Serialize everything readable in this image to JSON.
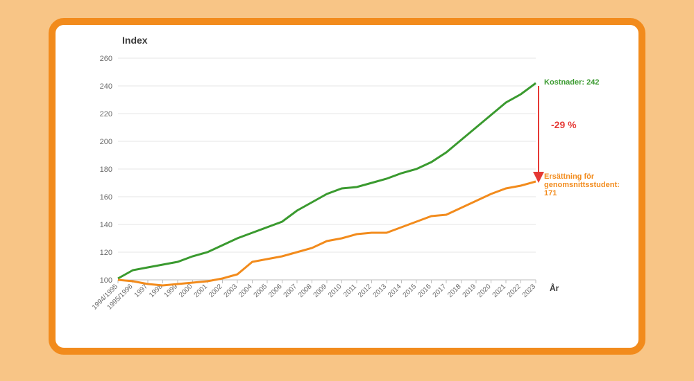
{
  "chart": {
    "type": "line",
    "y_axis_title": "Index",
    "x_axis_title": "År",
    "background_color": "#ffffff",
    "outer_background": "#f8c586",
    "card_border_color": "#f28b1c",
    "card_border_width": 10,
    "card_border_radius": 22,
    "grid_color": "#e5e5e5",
    "axis_color": "#bdbdbd",
    "tick_label_color": "#6b6b6b",
    "title_color": "#3a3a3a",
    "ylim": [
      90,
      260
    ],
    "yticks": [
      100,
      120,
      140,
      160,
      180,
      200,
      220,
      240,
      260
    ],
    "x_categories": [
      "1994/1995",
      "1995/1996",
      "1997",
      "1998",
      "1999",
      "2000",
      "2001",
      "2002",
      "2003",
      "2004",
      "2005",
      "2006",
      "2007",
      "2008",
      "2009",
      "2010",
      "2011",
      "2012",
      "2013",
      "2014",
      "2015",
      "2016",
      "2017",
      "2018",
      "2019",
      "2020",
      "2021",
      "2022",
      "2023"
    ],
    "line_width": 3,
    "x_label_fontsize": 10,
    "y_label_fontsize": 11,
    "series": [
      {
        "name": "Kostnader",
        "color": "#3a9a2f",
        "values": [
          101,
          107,
          109,
          111,
          113,
          117,
          120,
          125,
          130,
          134,
          138,
          142,
          150,
          156,
          162,
          166,
          167,
          170,
          173,
          177,
          180,
          185,
          192,
          201,
          210,
          219,
          228,
          234,
          242
        ],
        "end_label": "Kostnader: 242"
      },
      {
        "name": "Ersättning",
        "color": "#f28b1c",
        "values": [
          100,
          99,
          97,
          96,
          97,
          98,
          99,
          101,
          104,
          113,
          115,
          117,
          120,
          123,
          128,
          130,
          133,
          134,
          134,
          138,
          142,
          146,
          147,
          152,
          157,
          162,
          166,
          168,
          171
        ],
        "end_label": "Ersättning för\ngenomsnittsstudent:\n171"
      }
    ],
    "gap_annotation": {
      "text": "-29 %",
      "color": "#e53935",
      "arrow_color": "#e53935",
      "from_series": 0,
      "to_series": 1,
      "at_index": 28
    }
  }
}
